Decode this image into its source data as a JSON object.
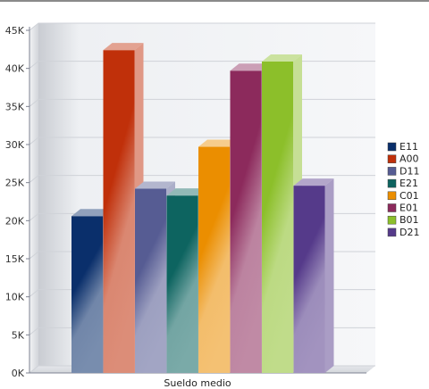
{
  "chart_data": {
    "type": "bar",
    "style": "3d-clustered",
    "categories": [
      "Sueldo medio"
    ],
    "series": [
      {
        "name": "E11",
        "values": [
          20600
        ],
        "color": "#0a2f6b"
      },
      {
        "name": "A00",
        "values": [
          42400
        ],
        "color": "#c0300a"
      },
      {
        "name": "D11",
        "values": [
          24200
        ],
        "color": "#565c93"
      },
      {
        "name": "E21",
        "values": [
          23300
        ],
        "color": "#0d6460"
      },
      {
        "name": "C01",
        "values": [
          29700
        ],
        "color": "#eb8e00"
      },
      {
        "name": "E01",
        "values": [
          39700
        ],
        "color": "#8c2a5c"
      },
      {
        "name": "B01",
        "values": [
          40900
        ],
        "color": "#8cbf2a"
      },
      {
        "name": "D21",
        "values": [
          24600
        ],
        "color": "#553a8a"
      }
    ],
    "y_ticks": [
      "0K",
      "5K",
      "10K",
      "15K",
      "20K",
      "25K",
      "30K",
      "35K",
      "40K",
      "45K"
    ],
    "ylim": [
      0,
      45000
    ],
    "grid": true,
    "legend_position": "right"
  }
}
